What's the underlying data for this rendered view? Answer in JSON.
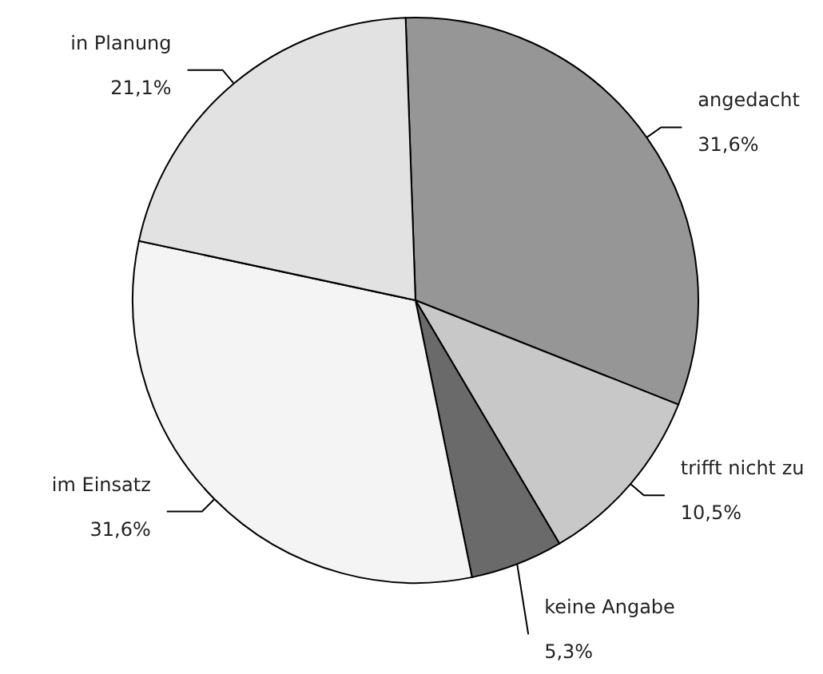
{
  "chart_data": {
    "type": "pie",
    "categories": [
      "angedacht",
      "trifft nicht zu",
      "keine Angabe",
      "im Einsatz",
      "in Planung"
    ],
    "values": [
      31.6,
      10.5,
      5.3,
      31.6,
      21.1
    ],
    "colors": [
      "#969696",
      "#c8c8c8",
      "#6a6a6a",
      "#f4f4f4",
      "#e2e2e2"
    ],
    "value_labels": [
      "31,6%",
      "10,5%",
      "5,3%",
      "31,6%",
      "21,1%"
    ]
  }
}
